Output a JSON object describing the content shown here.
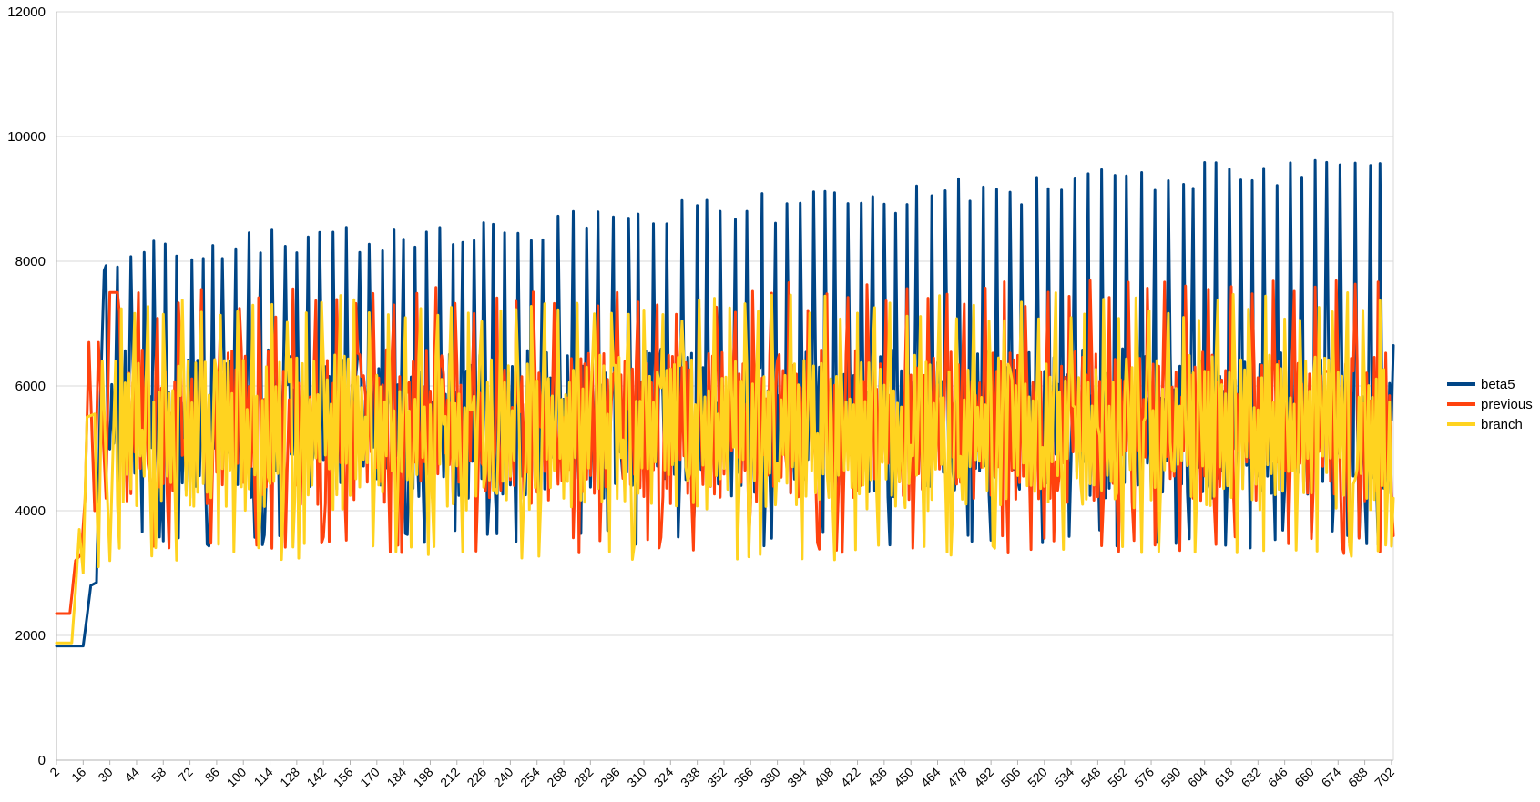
{
  "chart_data": {
    "type": "line",
    "title": "",
    "xlabel": "",
    "ylabel": "",
    "ylim": [
      0,
      12000
    ],
    "y_ticks": [
      "0",
      "2000",
      "4000",
      "6000",
      "8000",
      "10000",
      "12000"
    ],
    "x_range": [
      2,
      703
    ],
    "x_tick_labels": [
      "2",
      "16",
      "30",
      "44",
      "58",
      "72",
      "86",
      "100",
      "114",
      "128",
      "142",
      "156",
      "170",
      "184",
      "198",
      "212",
      "226",
      "240",
      "254",
      "268",
      "282",
      "296",
      "310",
      "324",
      "338",
      "352",
      "366",
      "380",
      "394",
      "408",
      "422",
      "436",
      "450",
      "464",
      "478",
      "492",
      "506",
      "520",
      "534",
      "548",
      "562",
      "576",
      "590",
      "604",
      "618",
      "632",
      "646",
      "660",
      "674",
      "688",
      "702"
    ],
    "grid": "horizontal",
    "legend_position": "right",
    "series": [
      {
        "name": "beta5",
        "color": "#004586",
        "pattern": {
          "ramp": [
            [
              2,
              1830
            ],
            [
              15,
              1830
            ],
            [
              16,
              1830
            ],
            [
              18,
              2300
            ],
            [
              20,
              2800
            ],
            [
              23,
              2850
            ],
            [
              25,
              5800
            ],
            [
              27,
              7850
            ]
          ],
          "base_low": 4200,
          "base_high": 6600,
          "peak_period": 6.5,
          "peak_start": 28,
          "peak_start_value": 8000,
          "peak_end_value": 9600,
          "dip_low": 3400,
          "end_value": 6650
        }
      },
      {
        "name": "previous",
        "color": "#ff420e",
        "pattern": {
          "ramp": [
            [
              2,
              2350
            ],
            [
              9,
              2350
            ],
            [
              12,
              3200
            ],
            [
              15,
              3300
            ],
            [
              17,
              4200
            ],
            [
              19,
              6700
            ],
            [
              22,
              4000
            ],
            [
              24,
              6700
            ],
            [
              28,
              4200
            ],
            [
              30,
              7500
            ],
            [
              34,
              7500
            ]
          ],
          "base_low": 4100,
          "base_high": 6600,
          "peak_period": 11,
          "peak_start": 34,
          "peak_start_value": 7300,
          "peak_end_value": 7500,
          "dip_low": 3300,
          "end_value": 3600
        }
      },
      {
        "name": "branch",
        "color": "#ffd320",
        "pattern": {
          "ramp": [
            [
              2,
              1880
            ],
            [
              10,
              1880
            ],
            [
              12,
              2700
            ],
            [
              14,
              3700
            ],
            [
              16,
              3000
            ],
            [
              18,
              5500
            ],
            [
              22,
              5550
            ],
            [
              24,
              3100
            ],
            [
              26,
              6400
            ],
            [
              30,
              3200
            ],
            [
              33,
              6400
            ]
          ],
          "base_low": 4000,
          "base_high": 6500,
          "peak_period": 9,
          "peak_start": 36,
          "peak_start_value": 7200,
          "peak_end_value": 7300,
          "dip_low": 3200,
          "end_value": 4200
        }
      }
    ]
  }
}
